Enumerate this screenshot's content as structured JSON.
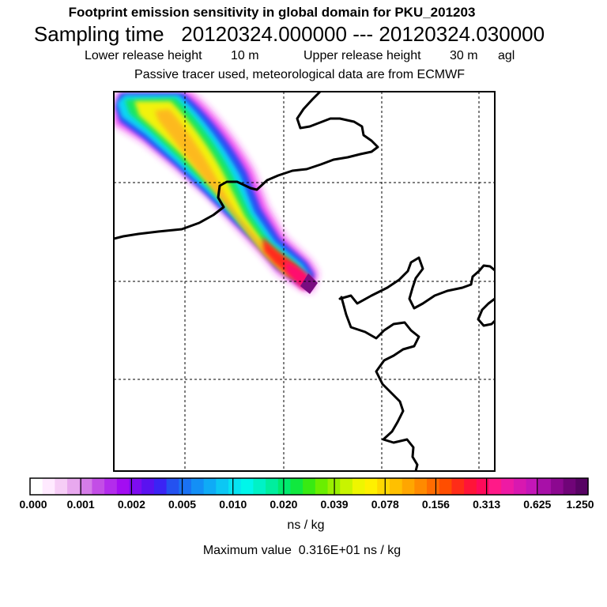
{
  "header": {
    "title": "Footprint emission sensitivity in global domain for PKU_201203",
    "sampling_prefix": "Sampling time",
    "sampling_start": "20120324.000000",
    "sampling_sep": "---",
    "sampling_end": "20120324.030000",
    "lower_release_label": "Lower release height",
    "lower_release_value": "10 m",
    "upper_release_label": "Upper release height",
    "upper_release_value": "30 m",
    "height_ref": "agl",
    "tracer_note": "Passive tracer used, meteorological data are from ECMWF"
  },
  "legend": {
    "ticks": [
      "0.000",
      "0.001",
      "0.002",
      "0.005",
      "0.010",
      "0.020",
      "0.039",
      "0.078",
      "0.156",
      "0.313",
      "0.625",
      "1.250"
    ],
    "colors": [
      "#ffffff",
      "#ffeaff",
      "#f6cdf6",
      "#e8a8ee",
      "#d57ce8",
      "#c34ee6",
      "#b32cec",
      "#a30df2",
      "#7d0cf0",
      "#5a12f0",
      "#3b24f4",
      "#2452f0",
      "#1a72f4",
      "#138ff6",
      "#0fabf6",
      "#0cc7f4",
      "#06e3f2",
      "#00f6ea",
      "#00f2c6",
      "#00ee9e",
      "#00ea6e",
      "#10e83e",
      "#38ea12",
      "#6aee00",
      "#9af000",
      "#c8f400",
      "#eef600",
      "#fff000",
      "#ffd800",
      "#ffc000",
      "#ffa600",
      "#ff8a00",
      "#ff6c00",
      "#ff4e00",
      "#ff2c18",
      "#ff1438",
      "#ff0a5a",
      "#ff1a88",
      "#ee1aa4",
      "#d818b0",
      "#c416b8",
      "#a810a8",
      "#8c0890",
      "#700478",
      "#580364"
    ],
    "units": "ns / kg",
    "max_label": "Maximum value",
    "max_value": "0.316E+01",
    "max_units": "ns / kg"
  },
  "map": {
    "plume_colors": {
      "outer": "#ee22ee",
      "blue": "#2a4cf5",
      "cyan": "#10d6f5",
      "green": "#18e660",
      "yellow": "#f2f20a",
      "orange": "#ffb020",
      "red": "#ff2a1a",
      "hot": "#ff0e6e",
      "core": "#7a0c80"
    }
  }
}
